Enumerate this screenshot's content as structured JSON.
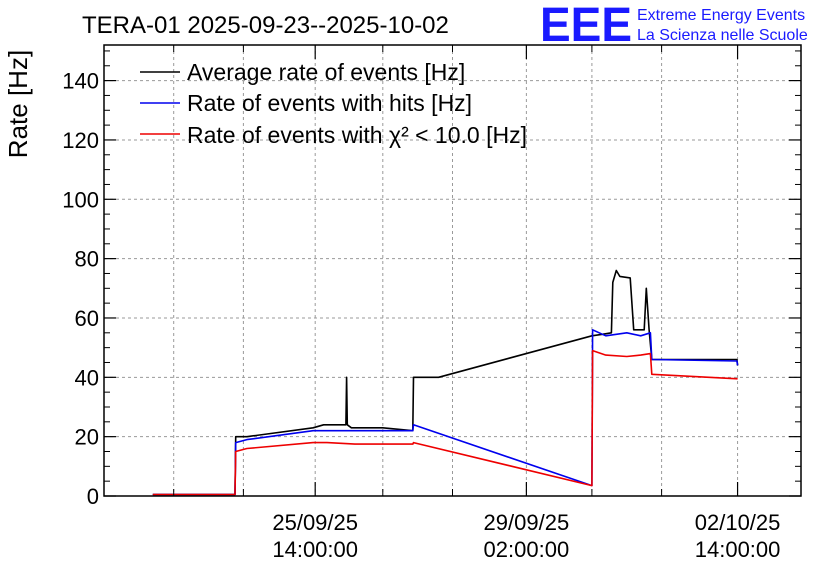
{
  "logo": {
    "mark": "EEE",
    "line1": "Extreme Energy Events",
    "line2": "La Scienza nelle Scuole",
    "color": "#1a1aff"
  },
  "chart_data": {
    "type": "line",
    "title": "TERA-01 2025-09-23--2025-10-02",
    "xlabel": "",
    "ylabel": "Rate [Hz]",
    "xlim": [
      0,
      100
    ],
    "ylim": [
      0,
      152
    ],
    "grid": true,
    "legend_position": "top-left",
    "y_ticks": [
      0,
      20,
      40,
      60,
      80,
      100,
      120,
      140
    ],
    "y_tick_labels": [
      "0",
      "20",
      "40",
      "60",
      "80",
      "100",
      "120",
      "140"
    ],
    "x_ticks": [
      {
        "pos": 30.3,
        "date": "25/09/25",
        "time": "14:00:00"
      },
      {
        "pos": 60.6,
        "date": "29/09/25",
        "time": "02:00:00"
      },
      {
        "pos": 90.9,
        "date": "02/10/25",
        "time": "14:00:00"
      }
    ],
    "x_minor_ticks": [
      10,
      20,
      40,
      50,
      70,
      80
    ],
    "series": [
      {
        "name": "Average rate of events [Hz]",
        "color": "#000000",
        "points": [
          [
            7.0,
            0.5
          ],
          [
            18.8,
            0.5
          ],
          [
            18.9,
            20
          ],
          [
            20.5,
            20
          ],
          [
            30.0,
            23
          ],
          [
            31.5,
            24
          ],
          [
            34.7,
            24
          ],
          [
            34.8,
            40
          ],
          [
            34.9,
            24
          ],
          [
            35.5,
            23
          ],
          [
            40.0,
            23
          ],
          [
            44.3,
            22
          ],
          [
            44.4,
            40
          ],
          [
            48.0,
            40
          ],
          [
            70.0,
            54
          ],
          [
            71.5,
            54.5
          ],
          [
            72.8,
            55
          ],
          [
            73.0,
            72
          ],
          [
            73.5,
            76
          ],
          [
            74.0,
            74
          ],
          [
            75.5,
            73.5
          ],
          [
            76.0,
            56
          ],
          [
            77.5,
            56
          ],
          [
            77.8,
            70
          ],
          [
            78.2,
            56
          ],
          [
            78.6,
            46
          ],
          [
            90.8,
            46
          ],
          [
            90.9,
            44
          ]
        ]
      },
      {
        "name": "Rate of events with hits [Hz]",
        "color": "#0000ee",
        "points": [
          [
            7.0,
            0.5
          ],
          [
            18.8,
            0.5
          ],
          [
            18.9,
            18
          ],
          [
            20.5,
            19
          ],
          [
            30.0,
            22
          ],
          [
            32.0,
            22
          ],
          [
            36.0,
            22
          ],
          [
            40.0,
            22
          ],
          [
            44.3,
            22
          ],
          [
            44.4,
            24
          ],
          [
            70.0,
            3.5
          ],
          [
            70.1,
            56
          ],
          [
            72.0,
            54
          ],
          [
            75.0,
            55
          ],
          [
            77.0,
            54
          ],
          [
            78.4,
            55
          ],
          [
            78.6,
            46
          ],
          [
            90.8,
            45.5
          ],
          [
            90.9,
            44
          ]
        ]
      },
      {
        "name": "Rate of events with χ² < 10.0 [Hz]",
        "color": "#ee0000",
        "points": [
          [
            7.0,
            0.5
          ],
          [
            18.8,
            0.5
          ],
          [
            18.9,
            15
          ],
          [
            20.5,
            16
          ],
          [
            30.0,
            18
          ],
          [
            32.0,
            18
          ],
          [
            36.0,
            17.5
          ],
          [
            40.0,
            17.5
          ],
          [
            44.3,
            17.5
          ],
          [
            44.4,
            18
          ],
          [
            70.0,
            3.5
          ],
          [
            70.1,
            49
          ],
          [
            72.0,
            47.5
          ],
          [
            75.0,
            47
          ],
          [
            77.0,
            47.5
          ],
          [
            78.4,
            48
          ],
          [
            78.6,
            41
          ],
          [
            90.9,
            39.5
          ]
        ]
      }
    ]
  }
}
